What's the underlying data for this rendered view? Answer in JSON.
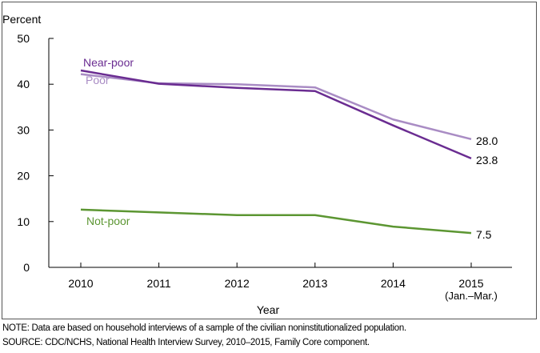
{
  "chart_data": {
    "type": "line",
    "ylabel": "Percent",
    "xlabel": "Year",
    "ylim": [
      0,
      50
    ],
    "yticks": [
      0,
      10,
      20,
      30,
      40,
      50
    ],
    "x_tick_labels": [
      "2010",
      "2011",
      "2012",
      "2013",
      "2014",
      "2015"
    ],
    "x_tick_sublabel": {
      "index": 5,
      "text": "(Jan.–Mar.)"
    },
    "grid": false,
    "series": [
      {
        "name": "Near-poor",
        "color": "#6a2c91",
        "values": [
          43.0,
          40.1,
          39.2,
          38.5,
          31.0,
          23.8
        ],
        "end_label": "23.8"
      },
      {
        "name": "Poor",
        "color": "#a98cc4",
        "values": [
          42.2,
          40.2,
          40.0,
          39.3,
          32.3,
          28.0
        ],
        "end_label": "28.0"
      },
      {
        "name": "Not-poor",
        "color": "#5c9632",
        "values": [
          12.6,
          12.0,
          11.4,
          11.4,
          8.9,
          7.5
        ],
        "end_label": "7.5"
      }
    ]
  },
  "note": "NOTE: Data are based on household interviews of a sample of the civilian noninstitutionalized population.",
  "source": "SOURCE: CDC/NCHS, National Health Interview Survey, 2010–2015, Family Core component."
}
